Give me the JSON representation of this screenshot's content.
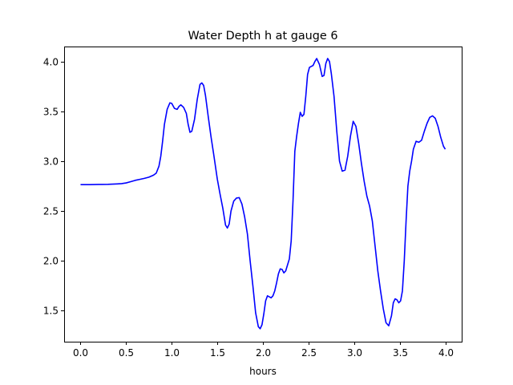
{
  "chart_data": {
    "type": "line",
    "title": "Water Depth h at gauge 6",
    "xlabel": "hours",
    "ylabel": "",
    "xlim": [
      -0.18,
      4.18
    ],
    "ylim": [
      1.19,
      4.15
    ],
    "xticks": [
      {
        "value": 0.0,
        "label": "0.0"
      },
      {
        "value": 0.5,
        "label": "0.5"
      },
      {
        "value": 1.0,
        "label": "1.0"
      },
      {
        "value": 1.5,
        "label": "1.5"
      },
      {
        "value": 2.0,
        "label": "2.0"
      },
      {
        "value": 2.5,
        "label": "2.5"
      },
      {
        "value": 3.0,
        "label": "3.0"
      },
      {
        "value": 3.5,
        "label": "3.5"
      },
      {
        "value": 4.0,
        "label": "4.0"
      }
    ],
    "yticks": [
      {
        "value": 1.5,
        "label": "1.5"
      },
      {
        "value": 2.0,
        "label": "2.0"
      },
      {
        "value": 2.5,
        "label": "2.5"
      },
      {
        "value": 3.0,
        "label": "3.0"
      },
      {
        "value": 3.5,
        "label": "3.5"
      },
      {
        "value": 4.0,
        "label": "4.0"
      }
    ],
    "grid": false,
    "series": [
      {
        "color": "#0000ff",
        "x": [
          0.0,
          0.1,
          0.2,
          0.3,
          0.4,
          0.45,
          0.5,
          0.55,
          0.6,
          0.65,
          0.7,
          0.75,
          0.8,
          0.83,
          0.86,
          0.88,
          0.9,
          0.92,
          0.95,
          0.98,
          1.0,
          1.03,
          1.06,
          1.08,
          1.1,
          1.13,
          1.16,
          1.18,
          1.2,
          1.22,
          1.25,
          1.28,
          1.31,
          1.33,
          1.35,
          1.37,
          1.4,
          1.43,
          1.46,
          1.5,
          1.53,
          1.56,
          1.59,
          1.61,
          1.63,
          1.65,
          1.68,
          1.71,
          1.74,
          1.77,
          1.8,
          1.83,
          1.86,
          1.89,
          1.92,
          1.95,
          1.97,
          1.99,
          2.01,
          2.03,
          2.05,
          2.07,
          2.09,
          2.11,
          2.13,
          2.15,
          2.17,
          2.19,
          2.21,
          2.23,
          2.25,
          2.27,
          2.29,
          2.31,
          2.33,
          2.35,
          2.37,
          2.39,
          2.41,
          2.43,
          2.45,
          2.47,
          2.49,
          2.51,
          2.53,
          2.55,
          2.57,
          2.59,
          2.62,
          2.65,
          2.67,
          2.69,
          2.71,
          2.73,
          2.75,
          2.78,
          2.81,
          2.84,
          2.87,
          2.9,
          2.93,
          2.96,
          2.99,
          3.02,
          3.05,
          3.08,
          3.11,
          3.14,
          3.17,
          3.2,
          3.23,
          3.26,
          3.29,
          3.32,
          3.35,
          3.38,
          3.41,
          3.43,
          3.45,
          3.47,
          3.49,
          3.51,
          3.53,
          3.55,
          3.57,
          3.59,
          3.61,
          3.63,
          3.65,
          3.68,
          3.71,
          3.74,
          3.77,
          3.8,
          3.83,
          3.86,
          3.89,
          3.92,
          3.95,
          3.98,
          4.0
        ],
        "y": [
          2.765,
          2.765,
          2.767,
          2.768,
          2.772,
          2.775,
          2.782,
          2.795,
          2.808,
          2.818,
          2.828,
          2.84,
          2.86,
          2.88,
          2.95,
          3.05,
          3.2,
          3.37,
          3.52,
          3.585,
          3.58,
          3.53,
          3.52,
          3.55,
          3.565,
          3.54,
          3.48,
          3.37,
          3.29,
          3.3,
          3.42,
          3.62,
          3.77,
          3.785,
          3.76,
          3.66,
          3.45,
          3.25,
          3.07,
          2.82,
          2.67,
          2.53,
          2.36,
          2.33,
          2.37,
          2.5,
          2.6,
          2.63,
          2.635,
          2.57,
          2.44,
          2.27,
          2.0,
          1.75,
          1.48,
          1.34,
          1.32,
          1.36,
          1.47,
          1.6,
          1.65,
          1.64,
          1.63,
          1.65,
          1.7,
          1.78,
          1.87,
          1.92,
          1.915,
          1.88,
          1.9,
          1.96,
          2.02,
          2.2,
          2.6,
          3.1,
          3.25,
          3.38,
          3.49,
          3.45,
          3.47,
          3.65,
          3.87,
          3.94,
          3.95,
          3.96,
          4.0,
          4.03,
          3.97,
          3.85,
          3.86,
          3.98,
          4.03,
          4.0,
          3.88,
          3.65,
          3.3,
          3.0,
          2.9,
          2.91,
          3.05,
          3.25,
          3.4,
          3.35,
          3.18,
          2.98,
          2.8,
          2.65,
          2.55,
          2.4,
          2.15,
          1.9,
          1.7,
          1.52,
          1.38,
          1.35,
          1.45,
          1.58,
          1.62,
          1.61,
          1.58,
          1.6,
          1.7,
          2.0,
          2.4,
          2.75,
          2.9,
          3.0,
          3.12,
          3.2,
          3.19,
          3.21,
          3.3,
          3.38,
          3.44,
          3.455,
          3.43,
          3.35,
          3.24,
          3.15,
          3.12
        ]
      }
    ]
  }
}
